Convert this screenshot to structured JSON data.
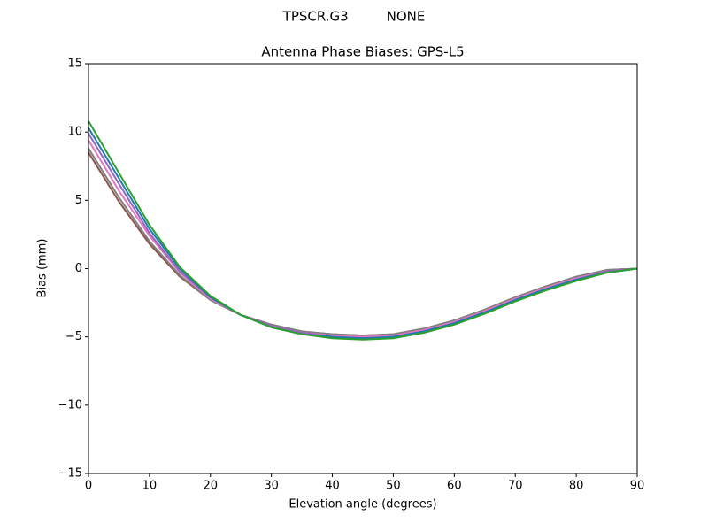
{
  "chart_data": {
    "type": "line",
    "suptitle": "TPSCR.G3         NONE",
    "title": "Antenna Phase Biases: GPS-L5",
    "xlabel": "Elevation angle (degrees)",
    "ylabel": "Bias (mm)",
    "x": [
      0,
      5,
      10,
      15,
      20,
      25,
      30,
      35,
      40,
      45,
      50,
      55,
      60,
      65,
      70,
      75,
      80,
      85,
      90
    ],
    "xlim": [
      0,
      90
    ],
    "xticks": [
      0,
      10,
      20,
      30,
      40,
      50,
      60,
      70,
      80,
      90
    ],
    "ylim": [
      -15,
      15
    ],
    "yticks": [
      {
        "value": -15,
        "label": "−15"
      },
      {
        "value": -10,
        "label": "−10"
      },
      {
        "value": -5,
        "label": "−5"
      },
      0,
      5,
      10,
      15
    ],
    "grid": false,
    "series": [
      {
        "color": "#8c564b",
        "values": [
          8.5,
          4.9,
          1.8,
          -0.6,
          -2.3,
          -3.4,
          -4.1,
          -4.6,
          -4.8,
          -4.9,
          -4.8,
          -4.4,
          -3.8,
          -3.0,
          -2.1,
          -1.3,
          -0.6,
          -0.1,
          0
        ]
      },
      {
        "color": "#7f7f7f",
        "values": [
          8.8,
          5.2,
          2.0,
          -0.5,
          -2.3,
          -3.4,
          -4.1,
          -4.6,
          -4.8,
          -4.9,
          -4.8,
          -4.4,
          -3.8,
          -3.0,
          -2.1,
          -1.3,
          -0.6,
          -0.1,
          0
        ]
      },
      {
        "color": "#e377c2",
        "values": [
          9.4,
          5.7,
          2.4,
          -0.3,
          -2.2,
          -3.4,
          -4.2,
          -4.7,
          -4.9,
          -5.0,
          -4.9,
          -4.5,
          -3.9,
          -3.1,
          -2.2,
          -1.4,
          -0.7,
          -0.2,
          0
        ]
      },
      {
        "color": "#9467bd",
        "values": [
          9.9,
          6.2,
          2.6,
          -0.2,
          -2.1,
          -3.4,
          -4.2,
          -4.7,
          -5.0,
          -5.1,
          -5.0,
          -4.6,
          -4.0,
          -3.2,
          -2.3,
          -1.5,
          -0.8,
          -0.2,
          0
        ]
      },
      {
        "color": "#1f77b4",
        "values": [
          10.3,
          6.6,
          2.9,
          0,
          -2.1,
          -3.4,
          -4.3,
          -4.8,
          -5.0,
          -5.1,
          -5.0,
          -4.6,
          -4.0,
          -3.2,
          -2.3,
          -1.5,
          -0.8,
          -0.3,
          0
        ]
      },
      {
        "color": "#2ca02c",
        "values": [
          10.8,
          7.0,
          3.2,
          0.1,
          -2.0,
          -3.4,
          -4.3,
          -4.8,
          -5.1,
          -5.2,
          -5.1,
          -4.7,
          -4.1,
          -3.3,
          -2.4,
          -1.6,
          -0.9,
          -0.3,
          0
        ]
      }
    ]
  }
}
